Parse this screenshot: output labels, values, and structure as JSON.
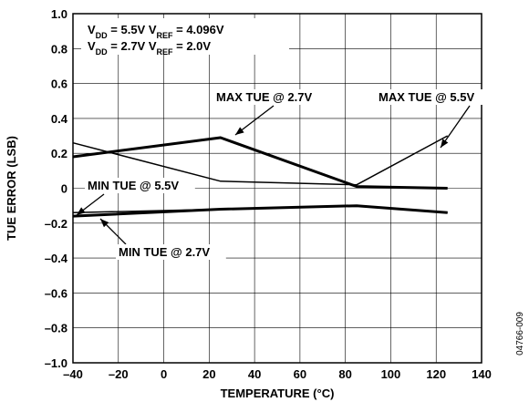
{
  "chart_data": {
    "type": "line",
    "xlabel": "TEMPERATURE (°C)",
    "ylabel": "TUE ERROR (LSB)",
    "xlim": [
      -40,
      140
    ],
    "ylim": [
      -1.0,
      1.0
    ],
    "xticks": [
      -40,
      -20,
      0,
      20,
      40,
      60,
      80,
      100,
      120,
      140
    ],
    "yticks": [
      1.0,
      0.8,
      0.6,
      0.4,
      0.2,
      0,
      -0.2,
      -0.4,
      -0.6,
      -0.8,
      -1.0
    ],
    "xtick_labels": [
      "–40",
      "–20",
      "0",
      "20",
      "40",
      "60",
      "80",
      "100",
      "120",
      "140"
    ],
    "ytick_labels": [
      "1.0",
      "0.8",
      "0.6",
      "0.4",
      "0.2",
      "0",
      "–0.2",
      "–0.4",
      "–0.6",
      "–0.8",
      "–1.0"
    ],
    "grid": true,
    "legend_lines": [
      {
        "a": "V",
        "a_sub": "DD",
        "b": " = 5.5V V",
        "b_sub": "REF",
        "c": " = 4.096V"
      },
      {
        "a": "V",
        "a_sub": "DD",
        "b": " = 2.7V V",
        "b_sub": "REF",
        "c": " = 2.0V"
      }
    ],
    "series": [
      {
        "name": "MAX TUE @ 2.7V",
        "weight": "thick",
        "x": [
          -40,
          25,
          85,
          125
        ],
        "y": [
          0.18,
          0.29,
          0.01,
          0.0
        ]
      },
      {
        "name": "MAX TUE @ 5.5V",
        "weight": "thin",
        "x": [
          -40,
          25,
          85,
          125
        ],
        "y": [
          0.26,
          0.04,
          0.02,
          0.3
        ]
      },
      {
        "name": "MIN TUE @ 5.5V",
        "weight": "thin",
        "x": [
          -40,
          25,
          85,
          125
        ],
        "y": [
          -0.14,
          -0.12,
          -0.1,
          -0.14
        ]
      },
      {
        "name": "MIN TUE @ 2.7V",
        "weight": "thick",
        "x": [
          -40,
          25,
          85,
          125
        ],
        "y": [
          -0.16,
          -0.12,
          -0.1,
          -0.14
        ]
      }
    ],
    "annotations": [
      {
        "text": "MAX TUE @ 2.7V"
      },
      {
        "text": "MAX TUE @ 5.5V"
      },
      {
        "text": "MIN TUE @ 5.5V"
      },
      {
        "text": "MIN TUE @ 2.7V"
      }
    ],
    "figure_code": "04766-009"
  }
}
